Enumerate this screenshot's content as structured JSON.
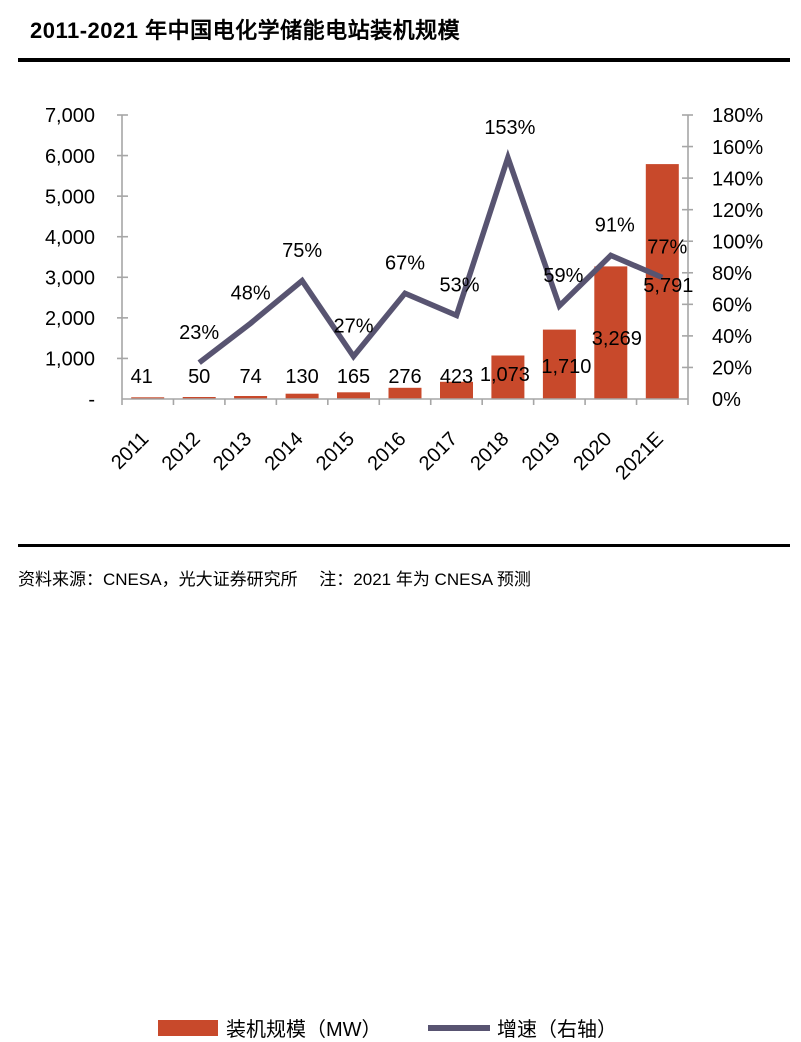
{
  "header": {
    "title": "2011-2021 年中国电化学储能电站装机规模"
  },
  "footer": {
    "source_note": "资料来源：CNESA，光大证券研究所　 注：2021 年为 CNESA 预测"
  },
  "colors": {
    "bar": "#C8492B",
    "line": "#585471",
    "axis": "#A6A6A6",
    "text": "#000000",
    "rule": "#000000"
  },
  "chart_data": {
    "type": "bar",
    "subtype": "bar-line-combo",
    "title": "2011-2021 年中国电化学储能电站装机规模",
    "categories": [
      "2011",
      "2012",
      "2013",
      "2014",
      "2015",
      "2016",
      "2017",
      "2018",
      "2019",
      "2020",
      "2021E"
    ],
    "series": [
      {
        "name": "装机规模（MW）",
        "chart": "bar",
        "axis": "left",
        "color": "#C8492B",
        "values": [
          41,
          50,
          74,
          130,
          165,
          276,
          423,
          1073,
          1710,
          3269,
          5791
        ],
        "value_labels": [
          "41",
          "50",
          "74",
          "130",
          "165",
          "276",
          "423",
          "1,073",
          "1,710",
          "3,269",
          "5,791"
        ]
      },
      {
        "name": "增速（右轴）",
        "chart": "line",
        "axis": "right",
        "color": "#585471",
        "values": [
          null,
          23,
          48,
          75,
          27,
          67,
          53,
          153,
          59,
          91,
          77
        ],
        "value_labels": [
          "",
          "23%",
          "48%",
          "75%",
          "27%",
          "67%",
          "53%",
          "153%",
          "59%",
          "91%",
          "77%"
        ]
      }
    ],
    "left_axis": {
      "min": 0,
      "max": 7000,
      "tick_step": 1000,
      "tick_labels": [
        "7,000",
        "6,000",
        "5,000",
        "4,000",
        "3,000",
        "2,000",
        "1,000",
        "-"
      ]
    },
    "right_axis": {
      "min": 0,
      "max": 180,
      "unit": "%",
      "tick_step": 20,
      "tick_labels": [
        "180%",
        "160%",
        "140%",
        "120%",
        "100%",
        "80%",
        "60%",
        "40%",
        "20%",
        "0%"
      ]
    },
    "grid": false,
    "legend": {
      "position": "bottom",
      "items": [
        {
          "label": "装机规模（MW）",
          "swatch": "rect",
          "color": "#C8492B"
        },
        {
          "label": "增速（右轴）",
          "swatch": "line",
          "color": "#585471"
        }
      ]
    }
  }
}
